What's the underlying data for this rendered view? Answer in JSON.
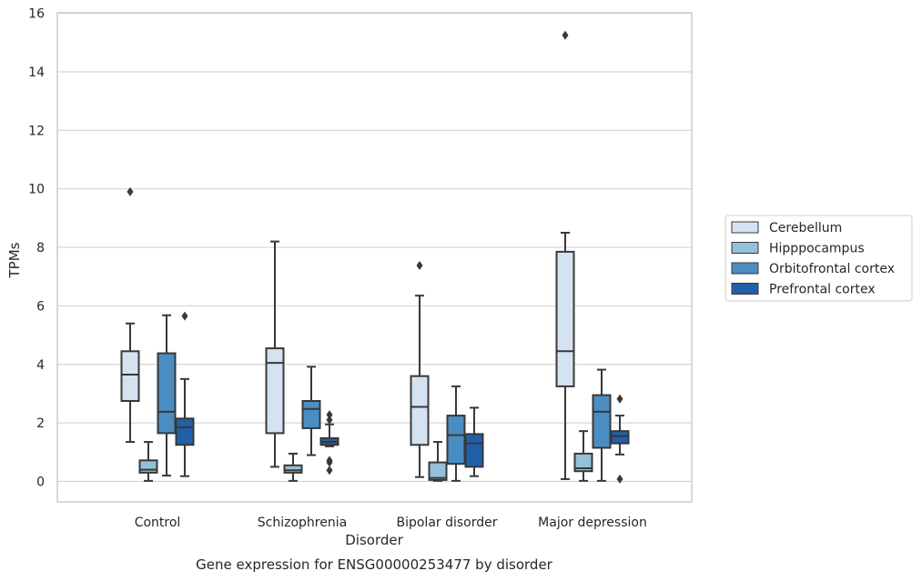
{
  "chart_data": {
    "type": "box",
    "title": "Gene expression for ENSG00000253477 by disorder",
    "xlabel": "Disorder",
    "ylabel": "TPMs",
    "ylim": [
      -0.7,
      16
    ],
    "yticks": [
      0,
      2,
      4,
      6,
      8,
      10,
      12,
      14,
      16
    ],
    "grid": true,
    "legend_position": "right",
    "categories": [
      "Control",
      "Schizophrenia",
      "Bipolar disorder",
      "Major depression"
    ],
    "series": [
      {
        "name": "Cerebellum",
        "color": "#d4e2f2",
        "boxes": [
          {
            "whisker_low": 1.35,
            "q1": 2.75,
            "median": 3.65,
            "q3": 4.45,
            "whisker_high": 5.4,
            "outliers": [
              9.9
            ]
          },
          {
            "whisker_low": 0.5,
            "q1": 1.65,
            "median": 4.05,
            "q3": 4.55,
            "whisker_high": 8.2,
            "outliers": []
          },
          {
            "whisker_low": 0.15,
            "q1": 1.25,
            "median": 2.55,
            "q3": 3.6,
            "whisker_high": 6.35,
            "outliers": [
              7.38
            ]
          },
          {
            "whisker_low": 0.08,
            "q1": 3.25,
            "median": 4.45,
            "q3": 7.85,
            "whisker_high": 8.5,
            "outliers": [
              15.25
            ]
          }
        ]
      },
      {
        "name": "Hipppocampus",
        "color": "#94c0d9",
        "boxes": [
          {
            "whisker_low": 0.02,
            "q1": 0.3,
            "median": 0.4,
            "q3": 0.72,
            "whisker_high": 1.35,
            "outliers": []
          },
          {
            "whisker_low": 0.02,
            "q1": 0.3,
            "median": 0.38,
            "q3": 0.55,
            "whisker_high": 0.95,
            "outliers": []
          },
          {
            "whisker_low": 0.02,
            "q1": 0.05,
            "median": 0.12,
            "q3": 0.65,
            "whisker_high": 1.35,
            "outliers": []
          },
          {
            "whisker_low": 0.02,
            "q1": 0.35,
            "median": 0.45,
            "q3": 0.95,
            "whisker_high": 1.72,
            "outliers": []
          }
        ]
      },
      {
        "name": "Orbitofrontal cortex",
        "color": "#4a8dc2",
        "boxes": [
          {
            "whisker_low": 0.2,
            "q1": 1.65,
            "median": 2.38,
            "q3": 4.38,
            "whisker_high": 5.68,
            "outliers": []
          },
          {
            "whisker_low": 0.9,
            "q1": 1.82,
            "median": 2.48,
            "q3": 2.75,
            "whisker_high": 3.92,
            "outliers": []
          },
          {
            "whisker_low": 0.02,
            "q1": 0.6,
            "median": 1.58,
            "q3": 2.25,
            "whisker_high": 3.25,
            "outliers": []
          },
          {
            "whisker_low": 0.02,
            "q1": 1.15,
            "median": 2.38,
            "q3": 2.95,
            "whisker_high": 3.82,
            "outliers": []
          }
        ]
      },
      {
        "name": "Prefrontal cortex",
        "color": "#2060a8",
        "boxes": [
          {
            "whisker_low": 0.18,
            "q1": 1.25,
            "median": 1.85,
            "q3": 2.15,
            "whisker_high": 3.5,
            "outliers": [
              5.65
            ]
          },
          {
            "whisker_low": 1.2,
            "q1": 1.25,
            "median": 1.35,
            "q3": 1.48,
            "whisker_high": 1.95,
            "outliers": [
              0.38,
              0.65,
              0.72,
              2.1,
              2.28
            ]
          },
          {
            "whisker_low": 0.18,
            "q1": 0.5,
            "median": 1.3,
            "q3": 1.62,
            "whisker_high": 2.52,
            "outliers": []
          },
          {
            "whisker_low": 0.92,
            "q1": 1.3,
            "median": 1.55,
            "q3": 1.72,
            "whisker_high": 2.25,
            "outliers": [
              0.08,
              2.82
            ]
          }
        ]
      }
    ]
  }
}
